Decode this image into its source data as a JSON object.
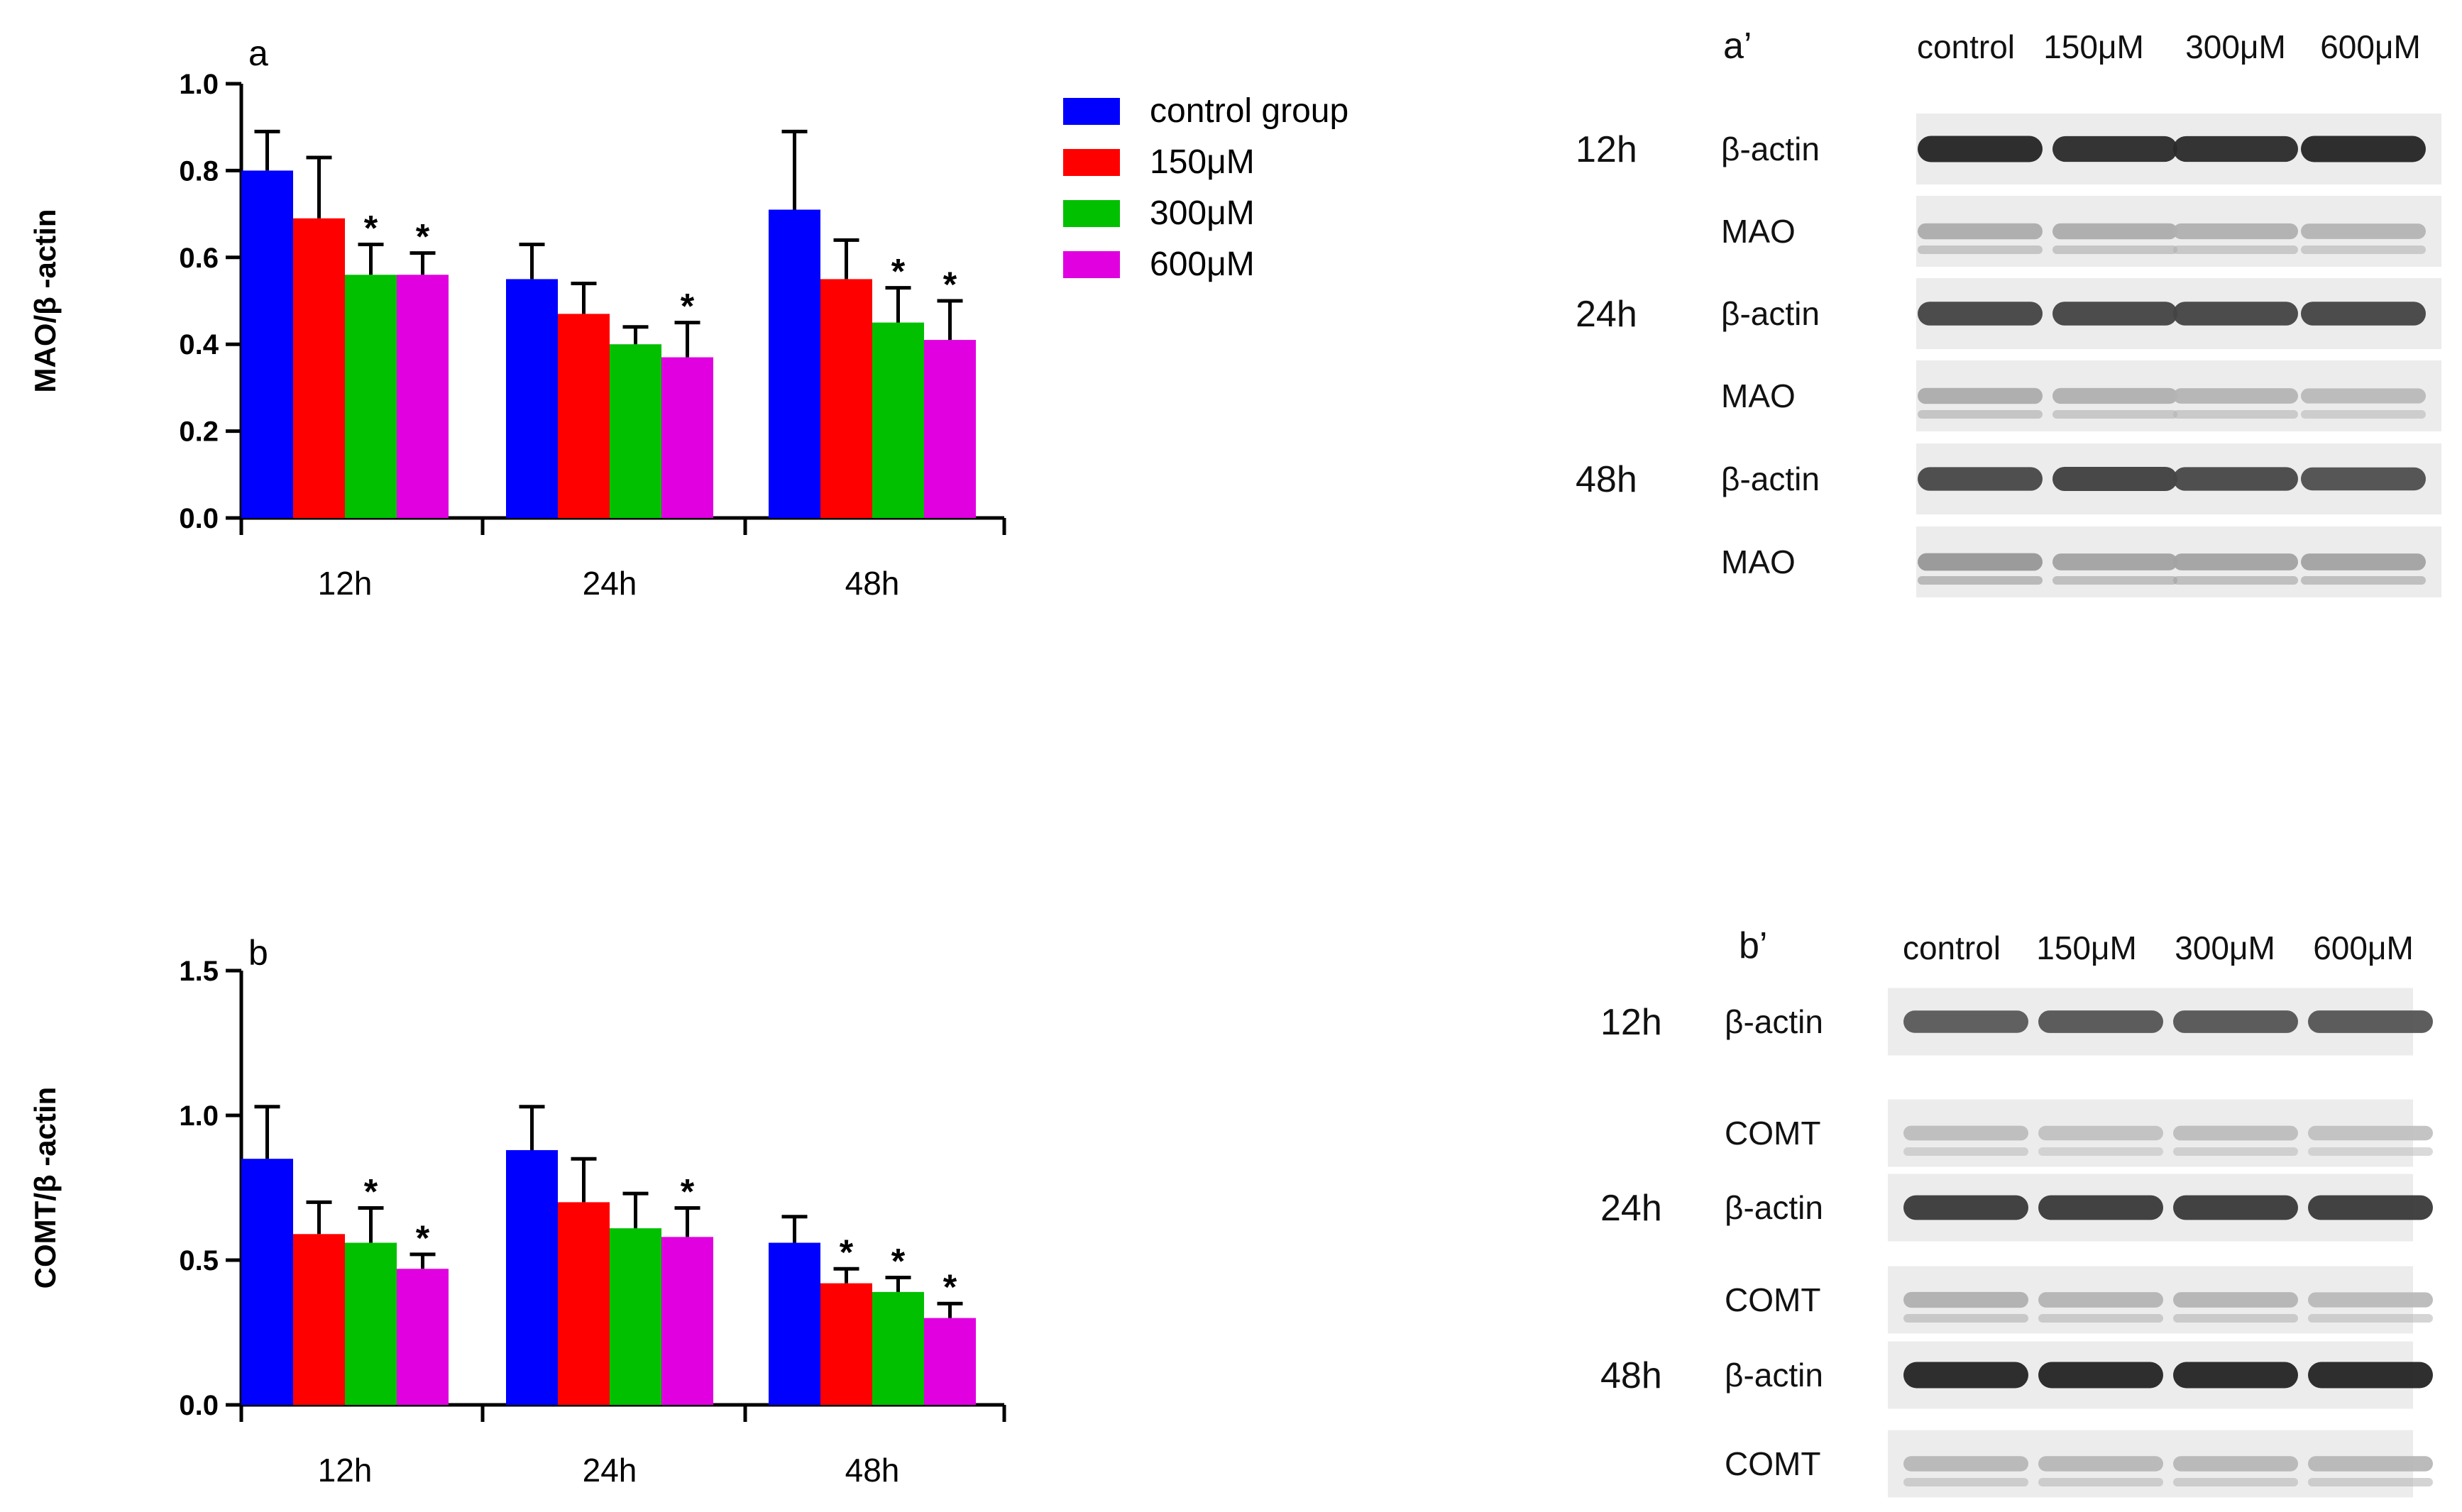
{
  "chart_data": [
    {
      "type": "bar",
      "panel_label": "a",
      "ylabel": "MAO/β -actin",
      "xlabel": "",
      "ylim": [
        0,
        1.0
      ],
      "yticks": [
        "0.0",
        "0.2",
        "0.4",
        "0.6",
        "0.8",
        "1.0"
      ],
      "ytick_values": [
        0,
        0.2,
        0.4,
        0.6,
        0.8,
        1.0
      ],
      "categories": [
        "12h",
        "24h",
        "48h"
      ],
      "series": [
        {
          "name": "control group",
          "values": [
            0.8,
            0.55,
            0.71
          ],
          "errors": [
            0.09,
            0.08,
            0.18
          ],
          "significant": [
            false,
            false,
            false
          ]
        },
        {
          "name": "150μM",
          "values": [
            0.69,
            0.47,
            0.55
          ],
          "errors": [
            0.14,
            0.07,
            0.09
          ],
          "significant": [
            false,
            false,
            false
          ]
        },
        {
          "name": "300μM",
          "values": [
            0.56,
            0.4,
            0.45
          ],
          "errors": [
            0.07,
            0.04,
            0.08
          ],
          "significant": [
            true,
            false,
            true
          ]
        },
        {
          "name": "600μM",
          "values": [
            0.56,
            0.37,
            0.41
          ],
          "errors": [
            0.05,
            0.08,
            0.09
          ],
          "significant": [
            true,
            true,
            true
          ]
        }
      ],
      "significance_marker": "*"
    },
    {
      "type": "bar",
      "panel_label": "b",
      "ylabel": "COMT/β -actin",
      "xlabel": "",
      "ylim": [
        0,
        1.5
      ],
      "yticks": [
        "0.0",
        "0.5",
        "1.0",
        "1.5"
      ],
      "ytick_values": [
        0,
        0.5,
        1.0,
        1.5
      ],
      "categories": [
        "12h",
        "24h",
        "48h"
      ],
      "series": [
        {
          "name": "control group",
          "values": [
            0.85,
            0.88,
            0.56
          ],
          "errors": [
            0.18,
            0.15,
            0.09
          ],
          "significant": [
            false,
            false,
            false
          ]
        },
        {
          "name": "150μM",
          "values": [
            0.59,
            0.7,
            0.42
          ],
          "errors": [
            0.11,
            0.15,
            0.05
          ],
          "significant": [
            false,
            false,
            true
          ]
        },
        {
          "name": "300μM",
          "values": [
            0.56,
            0.61,
            0.39
          ],
          "errors": [
            0.12,
            0.12,
            0.05
          ],
          "significant": [
            true,
            false,
            true
          ]
        },
        {
          "name": "600μM",
          "values": [
            0.47,
            0.58,
            0.3
          ],
          "errors": [
            0.05,
            0.1,
            0.05
          ],
          "significant": [
            true,
            true,
            true
          ]
        }
      ],
      "significance_marker": "*"
    }
  ],
  "legend": {
    "entries": [
      "control group",
      "150μM",
      "300μM",
      "600μM"
    ],
    "colors": [
      "#0000ff",
      "#ff0000",
      "#00c000",
      "#e000e0"
    ]
  },
  "blots": [
    {
      "panel_label": "a’",
      "lanes": [
        "control",
        "150μM",
        "300μM",
        "600μM"
      ],
      "rows": [
        {
          "time": "12h",
          "bands": [
            {
              "protein": "β-actin",
              "strength": [
                0.95,
                0.92,
                0.92,
                0.95
              ]
            },
            {
              "protein": "MAO",
              "strength": [
                0.3,
                0.3,
                0.28,
                0.26
              ]
            }
          ]
        },
        {
          "time": "24h",
          "bands": [
            {
              "protein": "β-actin",
              "strength": [
                0.8,
                0.8,
                0.8,
                0.8
              ]
            },
            {
              "protein": "MAO",
              "strength": [
                0.3,
                0.28,
                0.26,
                0.24
              ]
            }
          ]
        },
        {
          "time": "48h",
          "bands": [
            {
              "protein": "β-actin",
              "strength": [
                0.78,
                0.82,
                0.78,
                0.75
              ]
            },
            {
              "protein": "MAO",
              "strength": [
                0.4,
                0.35,
                0.35,
                0.35
              ]
            }
          ]
        }
      ]
    },
    {
      "panel_label": "b’",
      "lanes": [
        "control",
        "150μM",
        "300μM",
        "600μM"
      ],
      "rows": [
        {
          "time": "12h",
          "bands": [
            {
              "protein": "β-actin",
              "strength": [
                0.7,
                0.72,
                0.72,
                0.72
              ]
            },
            {
              "protein": "COMT",
              "strength": [
                0.22,
                0.2,
                0.22,
                0.2
              ]
            }
          ]
        },
        {
          "time": "24h",
          "bands": [
            {
              "protein": "β-actin",
              "strength": [
                0.85,
                0.85,
                0.85,
                0.85
              ]
            },
            {
              "protein": "COMT",
              "strength": [
                0.28,
                0.26,
                0.26,
                0.24
              ]
            }
          ]
        },
        {
          "time": "48h",
          "bands": [
            {
              "protein": "β-actin",
              "strength": [
                0.95,
                0.95,
                0.95,
                0.95
              ]
            },
            {
              "protein": "COMT",
              "strength": [
                0.25,
                0.25,
                0.25,
                0.25
              ]
            }
          ]
        }
      ]
    }
  ]
}
